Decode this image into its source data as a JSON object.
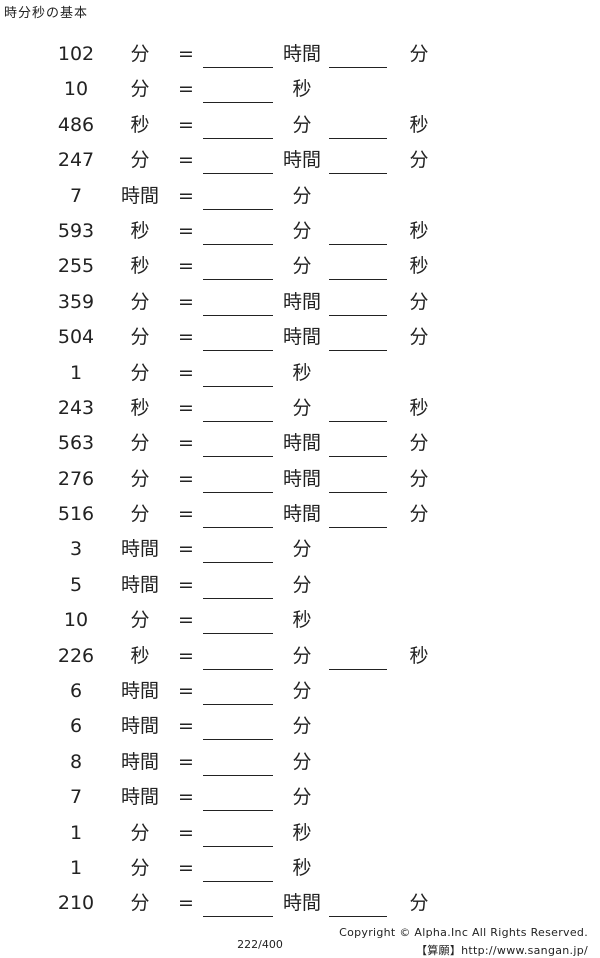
{
  "header": {
    "title": "時分秒の基本"
  },
  "equals_sign": "=",
  "problems": [
    {
      "value": "102",
      "unit": "分",
      "result_unit_1": "時間",
      "has_second_blank": true,
      "result_unit_2": "分"
    },
    {
      "value": "10",
      "unit": "分",
      "result_unit_1": "秒",
      "has_second_blank": false,
      "result_unit_2": ""
    },
    {
      "value": "486",
      "unit": "秒",
      "result_unit_1": "分",
      "has_second_blank": true,
      "result_unit_2": "秒"
    },
    {
      "value": "247",
      "unit": "分",
      "result_unit_1": "時間",
      "has_second_blank": true,
      "result_unit_2": "分"
    },
    {
      "value": "7",
      "unit": "時間",
      "result_unit_1": "分",
      "has_second_blank": false,
      "result_unit_2": ""
    },
    {
      "value": "593",
      "unit": "秒",
      "result_unit_1": "分",
      "has_second_blank": true,
      "result_unit_2": "秒"
    },
    {
      "value": "255",
      "unit": "秒",
      "result_unit_1": "分",
      "has_second_blank": true,
      "result_unit_2": "秒"
    },
    {
      "value": "359",
      "unit": "分",
      "result_unit_1": "時間",
      "has_second_blank": true,
      "result_unit_2": "分"
    },
    {
      "value": "504",
      "unit": "分",
      "result_unit_1": "時間",
      "has_second_blank": true,
      "result_unit_2": "分"
    },
    {
      "value": "1",
      "unit": "分",
      "result_unit_1": "秒",
      "has_second_blank": false,
      "result_unit_2": ""
    },
    {
      "value": "243",
      "unit": "秒",
      "result_unit_1": "分",
      "has_second_blank": true,
      "result_unit_2": "秒"
    },
    {
      "value": "563",
      "unit": "分",
      "result_unit_1": "時間",
      "has_second_blank": true,
      "result_unit_2": "分"
    },
    {
      "value": "276",
      "unit": "分",
      "result_unit_1": "時間",
      "has_second_blank": true,
      "result_unit_2": "分"
    },
    {
      "value": "516",
      "unit": "分",
      "result_unit_1": "時間",
      "has_second_blank": true,
      "result_unit_2": "分"
    },
    {
      "value": "3",
      "unit": "時間",
      "result_unit_1": "分",
      "has_second_blank": false,
      "result_unit_2": ""
    },
    {
      "value": "5",
      "unit": "時間",
      "result_unit_1": "分",
      "has_second_blank": false,
      "result_unit_2": ""
    },
    {
      "value": "10",
      "unit": "分",
      "result_unit_1": "秒",
      "has_second_blank": false,
      "result_unit_2": ""
    },
    {
      "value": "226",
      "unit": "秒",
      "result_unit_1": "分",
      "has_second_blank": true,
      "result_unit_2": "秒"
    },
    {
      "value": "6",
      "unit": "時間",
      "result_unit_1": "分",
      "has_second_blank": false,
      "result_unit_2": ""
    },
    {
      "value": "6",
      "unit": "時間",
      "result_unit_1": "分",
      "has_second_blank": false,
      "result_unit_2": ""
    },
    {
      "value": "8",
      "unit": "時間",
      "result_unit_1": "分",
      "has_second_blank": false,
      "result_unit_2": ""
    },
    {
      "value": "7",
      "unit": "時間",
      "result_unit_1": "分",
      "has_second_blank": false,
      "result_unit_2": ""
    },
    {
      "value": "1",
      "unit": "分",
      "result_unit_1": "秒",
      "has_second_blank": false,
      "result_unit_2": ""
    },
    {
      "value": "1",
      "unit": "分",
      "result_unit_1": "秒",
      "has_second_blank": false,
      "result_unit_2": ""
    },
    {
      "value": "210",
      "unit": "分",
      "result_unit_1": "時間",
      "has_second_blank": true,
      "result_unit_2": "分"
    }
  ],
  "footer": {
    "copyright": "Copyright © Alpha.Inc All Rights Reserved.",
    "site": "【算願】http://www.sangan.jp/",
    "page_number": "222/400"
  },
  "colors": {
    "text": "#222222",
    "background": "#ffffff"
  }
}
